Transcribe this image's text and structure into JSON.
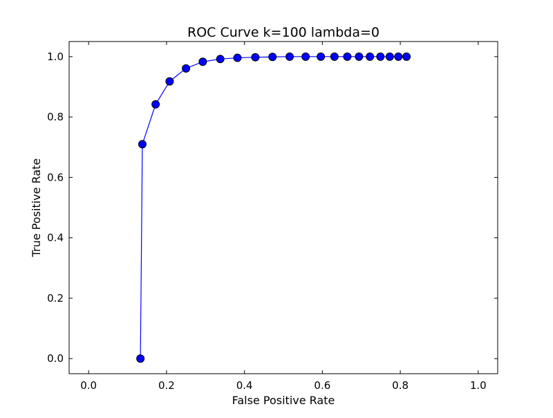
{
  "chart_data": {
    "type": "line",
    "title": "ROC Curve k=100 lambda=0",
    "xlabel": "False Positive Rate",
    "ylabel": "True Positive Rate",
    "xlim": [
      -0.05,
      1.05
    ],
    "ylim": [
      -0.05,
      1.05
    ],
    "xticks": [
      0.0,
      0.2,
      0.4,
      0.6,
      0.8,
      1.0
    ],
    "yticks": [
      0.0,
      0.2,
      0.4,
      0.6,
      0.8,
      1.0
    ],
    "xtick_labels": [
      "0.0",
      "0.2",
      "0.4",
      "0.6",
      "0.8",
      "1.0"
    ],
    "ytick_labels": [
      "0.0",
      "0.2",
      "0.4",
      "0.6",
      "0.8",
      "1.0"
    ],
    "grid": false,
    "legend": "none",
    "colors": {
      "line": "#0000ff",
      "marker_fill": "#0000ff",
      "marker_edge": "#000000"
    },
    "series": [
      {
        "x": [
          0.133,
          0.138,
          0.172,
          0.208,
          0.25,
          0.293,
          0.338,
          0.382,
          0.428,
          0.472,
          0.516,
          0.557,
          0.596,
          0.631,
          0.664,
          0.694,
          0.722,
          0.749,
          0.773,
          0.795,
          0.816
        ],
        "y": [
          0.0,
          0.71,
          0.842,
          0.918,
          0.961,
          0.983,
          0.992,
          0.996,
          0.998,
          0.999,
          1.0,
          1.0,
          1.0,
          1.0,
          1.0,
          1.0,
          1.0,
          1.0,
          1.0,
          1.0,
          1.0
        ]
      }
    ]
  }
}
